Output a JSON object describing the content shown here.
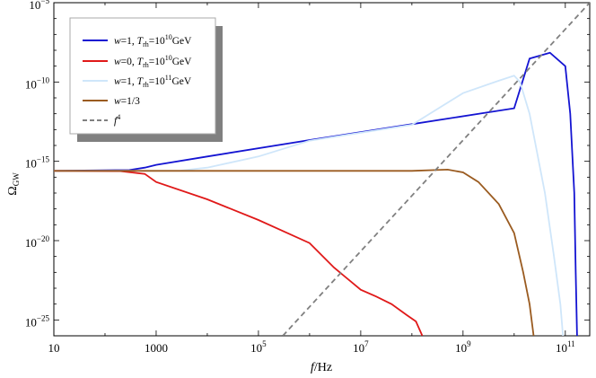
{
  "chart_data": {
    "type": "line",
    "title": "",
    "xlabel": "f/Hz",
    "ylabel": "Ω_GW",
    "x_scale": "log",
    "y_scale": "log",
    "xlim": [
      10,
      300000000000.0
    ],
    "ylim": [
      1e-26,
      1e-05
    ],
    "x_ticks": [
      {
        "value": 10,
        "base": "10",
        "exp": ""
      },
      {
        "value": 1000,
        "base": "1000",
        "exp": ""
      },
      {
        "value": 100000,
        "base": "10",
        "exp": "5"
      },
      {
        "value": 10000000,
        "base": "10",
        "exp": "7"
      },
      {
        "value": 1000000000,
        "base": "10",
        "exp": "9"
      },
      {
        "value": 100000000000,
        "base": "10",
        "exp": "11"
      }
    ],
    "y_ticks": [
      {
        "value": 1e-25,
        "base": "10",
        "exp": "−25"
      },
      {
        "value": 1e-20,
        "base": "10",
        "exp": "−20"
      },
      {
        "value": 1e-15,
        "base": "10",
        "exp": "−15"
      },
      {
        "value": 1e-10,
        "base": "10",
        "exp": "−10"
      },
      {
        "value": 1e-05,
        "base": "10",
        "exp": "−5"
      }
    ],
    "legend_position": "top-left",
    "grid": false,
    "series": [
      {
        "name": "w=1, T_rh=10^10 GeV",
        "legend": {
          "w": "1",
          "T": "10",
          "T_exp": "10",
          "unit": "GeV"
        },
        "color": "#1414d2",
        "dash": false,
        "points": [
          [
            10,
            2.5e-16
          ],
          [
            300,
            2.8e-16
          ],
          [
            600,
            4e-16
          ],
          [
            1000,
            6e-16
          ],
          [
            10000.0,
            2e-15
          ],
          [
            1000000.0,
            2.2e-14
          ],
          [
            100000000.0,
            2.2e-13
          ],
          [
            10000000000.0,
            2.2e-12
          ],
          [
            15000000000.0,
            1.5e-10
          ],
          [
            20000000000.0,
            3e-09
          ],
          [
            50000000000.0,
            7e-09
          ],
          [
            100000000000.0,
            1e-09
          ],
          [
            125000000000.0,
            1e-12
          ],
          [
            150000000000.0,
            1e-17
          ],
          [
            160000000000.0,
            1e-22
          ],
          [
            170000000000.0,
            1e-26
          ]
        ]
      },
      {
        "name": "w=0, T_rh=10^10 GeV",
        "legend": {
          "w": "0",
          "T": "10",
          "T_exp": "10",
          "unit": "GeV"
        },
        "color": "#e01919",
        "dash": false,
        "points": [
          [
            10,
            2.5e-16
          ],
          [
            200,
            2.4e-16
          ],
          [
            600,
            1.6e-16
          ],
          [
            1000,
            5e-17
          ],
          [
            10000.0,
            4e-18
          ],
          [
            100000.0,
            2e-19
          ],
          [
            1000000.0,
            7e-21
          ],
          [
            3000000.0,
            2e-22
          ],
          [
            10000000.0,
            8e-24
          ],
          [
            20000000.0,
            3e-24
          ],
          [
            40000000.0,
            1e-24
          ],
          [
            80000000.0,
            2e-25
          ],
          [
            120000000.0,
            8e-26
          ],
          [
            160000000.0,
            1e-26
          ]
        ]
      },
      {
        "name": "w=1, T_rh=10^11 GeV",
        "legend": {
          "w": "1",
          "T": "10",
          "T_exp": "11",
          "unit": "GeV"
        },
        "color": "#cfe6fa",
        "dash": false,
        "points": [
          [
            10,
            2.5e-16
          ],
          [
            3000,
            2.6e-16
          ],
          [
            10000.0,
            4e-16
          ],
          [
            100000.0,
            2e-15
          ],
          [
            1000000.0,
            2e-14
          ],
          [
            100000000.0,
            2e-13
          ],
          [
            1000000000.0,
            2e-11
          ],
          [
            5000000000.0,
            1.2e-10
          ],
          [
            10000000000.0,
            2.5e-10
          ],
          [
            13000000000.0,
            1e-10
          ],
          [
            20000000000.0,
            1e-12
          ],
          [
            40000000000.0,
            1e-17
          ],
          [
            60000000000.0,
            1e-21
          ],
          [
            80000000000.0,
            1e-24
          ],
          [
            90000000000.0,
            1e-26
          ]
        ]
      },
      {
        "name": "w=1/3",
        "legend": {
          "w": "1/3",
          "T": "",
          "T_exp": "",
          "unit": ""
        },
        "color": "#9a5b20",
        "dash": false,
        "points": [
          [
            10,
            2.5e-16
          ],
          [
            100000000.0,
            2.5e-16
          ],
          [
            500000000.0,
            3e-16
          ],
          [
            1000000000.0,
            2e-16
          ],
          [
            2000000000.0,
            5e-17
          ],
          [
            5000000000.0,
            2e-18
          ],
          [
            10000000000.0,
            3e-20
          ],
          [
            15000000000.0,
            1e-22
          ],
          [
            20000000000.0,
            1e-24
          ],
          [
            24000000000.0,
            1e-26
          ]
        ]
      },
      {
        "name": "f^4",
        "legend": {
          "w": "",
          "T": "",
          "T_exp": "",
          "unit": ""
        },
        "color": "#808080",
        "dash": true,
        "points": [
          [
            300000.0,
            1e-26
          ],
          [
            300000000000.0,
            1e-05
          ]
        ]
      }
    ]
  }
}
